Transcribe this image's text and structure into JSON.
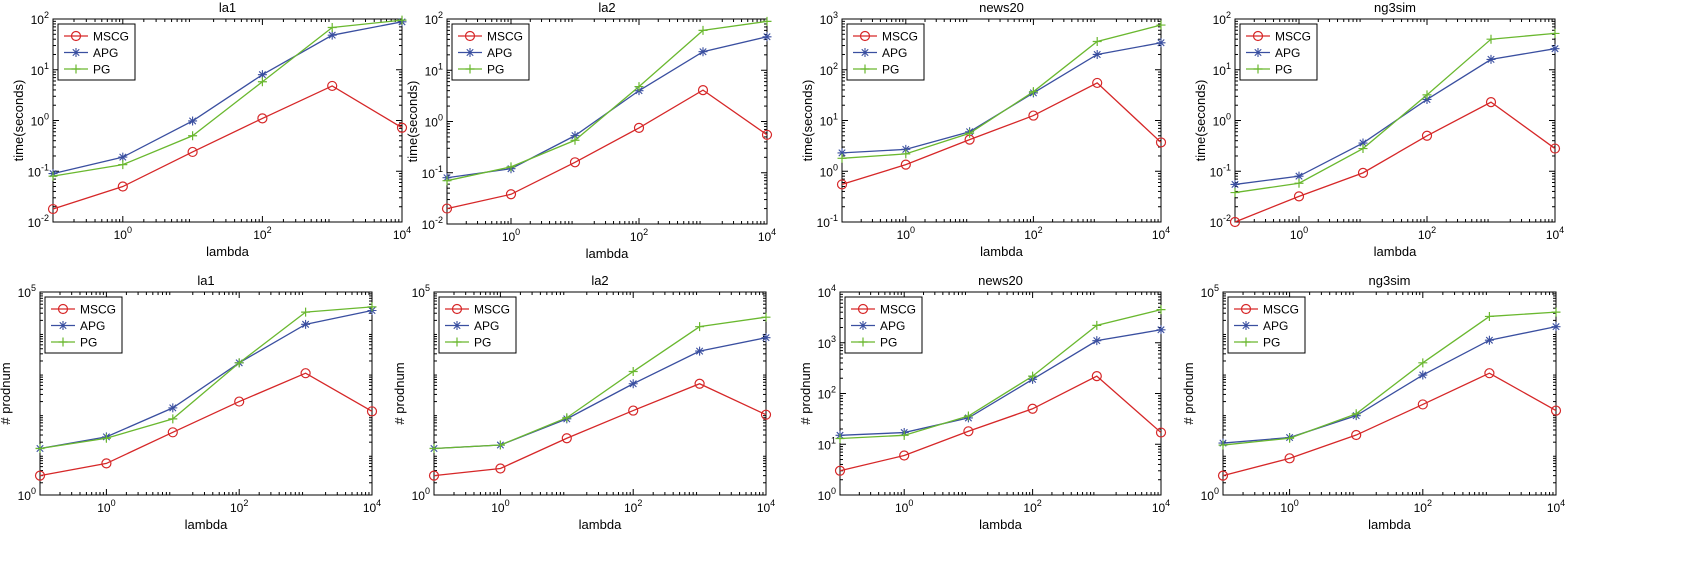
{
  "legend_position": "top-left",
  "colors": {
    "MSCG": "#d62728",
    "APG": "#3a4fa0",
    "PG": "#6ab82f"
  },
  "chart_data": [
    {
      "type": "line",
      "title": "la1",
      "xlabel": "lambda",
      "ylabel": "time(seconds)",
      "x": [
        0.1,
        1,
        10,
        100,
        1000,
        10000
      ],
      "xscale": "log",
      "yscale": "log",
      "xlim": [
        0.1,
        10000
      ],
      "ylim": [
        0.01,
        100
      ],
      "xticks": [
        {
          "v": 1,
          "base": "10",
          "exp": "0"
        },
        {
          "v": 100,
          "base": "10",
          "exp": "2"
        },
        {
          "v": 10000,
          "base": "10",
          "exp": "4"
        }
      ],
      "yticks": [
        {
          "v": 0.01,
          "base": "10",
          "exp": "-2"
        },
        {
          "v": 0.1,
          "base": "10",
          "exp": "-1"
        },
        {
          "v": 1,
          "base": "10",
          "exp": "0"
        },
        {
          "v": 10,
          "base": "10",
          "exp": "1"
        },
        {
          "v": 100,
          "base": "10",
          "exp": "2"
        }
      ],
      "series": [
        {
          "name": "MSCG",
          "marker": "circle",
          "values": [
            0.018,
            0.05,
            0.24,
            1.1,
            4.8,
            0.72
          ]
        },
        {
          "name": "APG",
          "marker": "star",
          "values": [
            0.09,
            0.19,
            0.98,
            8,
            48,
            88
          ]
        },
        {
          "name": "PG",
          "marker": "plus",
          "values": [
            0.08,
            0.135,
            0.5,
            5.8,
            68,
            95
          ]
        }
      ]
    },
    {
      "type": "line",
      "title": "la2",
      "xlabel": "lambda",
      "ylabel": "time(seconds)",
      "x": [
        0.1,
        1,
        10,
        100,
        1000,
        10000
      ],
      "xscale": "log",
      "yscale": "log",
      "xlim": [
        0.1,
        10000
      ],
      "ylim": [
        0.01,
        100
      ],
      "xticks": [
        {
          "v": 1,
          "base": "10",
          "exp": "0"
        },
        {
          "v": 100,
          "base": "10",
          "exp": "2"
        },
        {
          "v": 10000,
          "base": "10",
          "exp": "4"
        }
      ],
      "yticks": [
        {
          "v": 0.01,
          "base": "10",
          "exp": "-2"
        },
        {
          "v": 0.1,
          "base": "10",
          "exp": "-1"
        },
        {
          "v": 1,
          "base": "10",
          "exp": "0"
        },
        {
          "v": 10,
          "base": "10",
          "exp": "1"
        },
        {
          "v": 100,
          "base": "10",
          "exp": "2"
        }
      ],
      "series": [
        {
          "name": "MSCG",
          "marker": "circle",
          "values": [
            0.02,
            0.038,
            0.16,
            0.75,
            4.1,
            0.55
          ]
        },
        {
          "name": "APG",
          "marker": "star",
          "values": [
            0.08,
            0.12,
            0.53,
            4,
            23,
            45
          ]
        },
        {
          "name": "PG",
          "marker": "plus",
          "values": [
            0.07,
            0.13,
            0.43,
            4.8,
            60,
            90
          ]
        }
      ]
    },
    {
      "type": "line",
      "title": "news20",
      "xlabel": "lambda",
      "ylabel": "time(seconds)",
      "x": [
        0.1,
        1,
        10,
        100,
        1000,
        10000
      ],
      "xscale": "log",
      "yscale": "log",
      "xlim": [
        0.1,
        10000
      ],
      "ylim": [
        0.1,
        1000
      ],
      "xticks": [
        {
          "v": 1,
          "base": "10",
          "exp": "0"
        },
        {
          "v": 100,
          "base": "10",
          "exp": "2"
        },
        {
          "v": 10000,
          "base": "10",
          "exp": "4"
        }
      ],
      "yticks": [
        {
          "v": 0.1,
          "base": "10",
          "exp": "-1"
        },
        {
          "v": 1,
          "base": "10",
          "exp": "0"
        },
        {
          "v": 10,
          "base": "10",
          "exp": "1"
        },
        {
          "v": 100,
          "base": "10",
          "exp": "2"
        },
        {
          "v": 1000,
          "base": "10",
          "exp": "3"
        }
      ],
      "series": [
        {
          "name": "MSCG",
          "marker": "circle",
          "values": [
            0.55,
            1.35,
            4.2,
            12.5,
            55,
            3.7
          ]
        },
        {
          "name": "APG",
          "marker": "star",
          "values": [
            2.3,
            2.7,
            6,
            35,
            200,
            340
          ]
        },
        {
          "name": "PG",
          "marker": "plus",
          "values": [
            1.8,
            2.2,
            5.6,
            37,
            360,
            760
          ]
        }
      ]
    },
    {
      "type": "line",
      "title": "ng3sim",
      "xlabel": "lambda",
      "ylabel": "time(seconds)",
      "x": [
        0.1,
        1,
        10,
        100,
        1000,
        10000
      ],
      "xscale": "log",
      "yscale": "log",
      "xlim": [
        0.1,
        10000
      ],
      "ylim": [
        0.01,
        100
      ],
      "xticks": [
        {
          "v": 1,
          "base": "10",
          "exp": "0"
        },
        {
          "v": 100,
          "base": "10",
          "exp": "2"
        },
        {
          "v": 10000,
          "base": "10",
          "exp": "4"
        }
      ],
      "yticks": [
        {
          "v": 0.01,
          "base": "10",
          "exp": "-2"
        },
        {
          "v": 0.1,
          "base": "10",
          "exp": "-1"
        },
        {
          "v": 1,
          "base": "10",
          "exp": "0"
        },
        {
          "v": 10,
          "base": "10",
          "exp": "1"
        },
        {
          "v": 100,
          "base": "10",
          "exp": "2"
        }
      ],
      "series": [
        {
          "name": "MSCG",
          "marker": "circle",
          "values": [
            0.01,
            0.032,
            0.093,
            0.5,
            2.3,
            0.28
          ]
        },
        {
          "name": "APG",
          "marker": "star",
          "values": [
            0.055,
            0.08,
            0.36,
            2.6,
            16,
            26
          ]
        },
        {
          "name": "PG",
          "marker": "plus",
          "values": [
            0.038,
            0.058,
            0.28,
            3.2,
            40,
            52
          ]
        }
      ]
    },
    {
      "type": "line",
      "title": "la1",
      "xlabel": "lambda",
      "ylabel": "# prodnum",
      "x": [
        0.1,
        1,
        10,
        100,
        1000,
        10000
      ],
      "xscale": "log",
      "yscale": "log",
      "xlim": [
        0.1,
        10000
      ],
      "ylim": [
        1,
        100000
      ],
      "xticks": [
        {
          "v": 1,
          "base": "10",
          "exp": "0"
        },
        {
          "v": 100,
          "base": "10",
          "exp": "2"
        },
        {
          "v": 10000,
          "base": "10",
          "exp": "4"
        }
      ],
      "yticks": [
        {
          "v": 1,
          "base": "10",
          "exp": "0"
        },
        {
          "v": 100000,
          "base": "10",
          "exp": "5"
        }
      ],
      "series": [
        {
          "name": "MSCG",
          "marker": "circle",
          "values": [
            3,
            6,
            35,
            200,
            1000,
            115
          ]
        },
        {
          "name": "APG",
          "marker": "star",
          "values": [
            14,
            27,
            140,
            1800,
            16000,
            35000
          ]
        },
        {
          "name": "PG",
          "marker": "plus",
          "values": [
            14,
            25,
            75,
            1800,
            32000,
            43000
          ]
        }
      ]
    },
    {
      "type": "line",
      "title": "la2",
      "xlabel": "lambda",
      "ylabel": "# prodnum",
      "x": [
        0.1,
        1,
        10,
        100,
        1000,
        10000
      ],
      "xscale": "log",
      "yscale": "log",
      "xlim": [
        0.1,
        10000
      ],
      "ylim": [
        1,
        100000
      ],
      "xticks": [
        {
          "v": 1,
          "base": "10",
          "exp": "0"
        },
        {
          "v": 100,
          "base": "10",
          "exp": "2"
        },
        {
          "v": 10000,
          "base": "10",
          "exp": "4"
        }
      ],
      "yticks": [
        {
          "v": 1,
          "base": "10",
          "exp": "0"
        },
        {
          "v": 100000,
          "base": "10",
          "exp": "5"
        }
      ],
      "series": [
        {
          "name": "MSCG",
          "marker": "circle",
          "values": [
            3,
            4.5,
            25,
            120,
            550,
            95
          ]
        },
        {
          "name": "APG",
          "marker": "star",
          "values": [
            14,
            17,
            75,
            550,
            3500,
            7500
          ]
        },
        {
          "name": "PG",
          "marker": "plus",
          "values": [
            14,
            17,
            80,
            1100,
            14000,
            24000
          ]
        }
      ]
    },
    {
      "type": "line",
      "title": "news20",
      "xlabel": "lambda",
      "ylabel": "# prodnum",
      "x": [
        0.1,
        1,
        10,
        100,
        1000,
        10000
      ],
      "xscale": "log",
      "yscale": "log",
      "xlim": [
        0.1,
        10000
      ],
      "ylim": [
        1,
        10000
      ],
      "xticks": [
        {
          "v": 1,
          "base": "10",
          "exp": "0"
        },
        {
          "v": 100,
          "base": "10",
          "exp": "2"
        },
        {
          "v": 10000,
          "base": "10",
          "exp": "4"
        }
      ],
      "yticks": [
        {
          "v": 1,
          "base": "10",
          "exp": "0"
        },
        {
          "v": 10,
          "base": "10",
          "exp": "1"
        },
        {
          "v": 100,
          "base": "10",
          "exp": "2"
        },
        {
          "v": 1000,
          "base": "10",
          "exp": "3"
        },
        {
          "v": 10000,
          "base": "10",
          "exp": "4"
        }
      ],
      "series": [
        {
          "name": "MSCG",
          "marker": "circle",
          "values": [
            3,
            6,
            18,
            50,
            220,
            17
          ]
        },
        {
          "name": "APG",
          "marker": "star",
          "values": [
            15,
            17,
            33,
            190,
            1100,
            1800
          ]
        },
        {
          "name": "PG",
          "marker": "plus",
          "values": [
            13,
            15,
            36,
            220,
            2200,
            4500
          ]
        }
      ]
    },
    {
      "type": "line",
      "title": "ng3sim",
      "xlabel": "lambda",
      "ylabel": "# prodnum",
      "x": [
        0.1,
        1,
        10,
        100,
        1000,
        10000
      ],
      "xscale": "log",
      "yscale": "log",
      "xlim": [
        0.1,
        10000
      ],
      "ylim": [
        1,
        100000
      ],
      "xticks": [
        {
          "v": 1,
          "base": "10",
          "exp": "0"
        },
        {
          "v": 100,
          "base": "10",
          "exp": "2"
        },
        {
          "v": 10000,
          "base": "10",
          "exp": "4"
        }
      ],
      "yticks": [
        {
          "v": 1,
          "base": "10",
          "exp": "0"
        },
        {
          "v": 100000,
          "base": "10",
          "exp": "5"
        }
      ],
      "series": [
        {
          "name": "MSCG",
          "marker": "circle",
          "values": [
            3,
            8,
            30,
            170,
            1000,
            120
          ]
        },
        {
          "name": "APG",
          "marker": "star",
          "values": [
            19,
            26,
            90,
            900,
            6500,
            14000
          ]
        },
        {
          "name": "PG",
          "marker": "plus",
          "values": [
            17,
            25,
            100,
            1800,
            25000,
            32000
          ]
        }
      ]
    }
  ]
}
